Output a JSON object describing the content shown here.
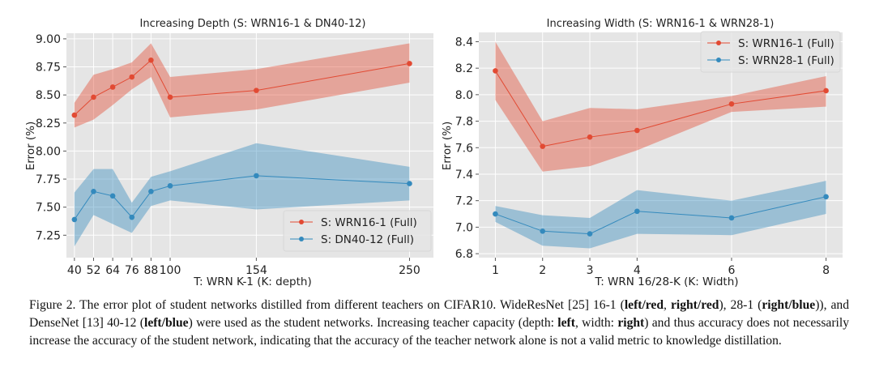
{
  "chart_data": [
    {
      "type": "line",
      "title": "Increasing Depth (S: WRN16-1 & DN40-12)",
      "xlabel": "T: WRN K-1 (K: depth)",
      "ylabel": "Error (%)",
      "x": [
        40,
        52,
        64,
        76,
        88,
        100,
        154,
        250
      ],
      "xticks": [
        "40",
        "52",
        "64",
        "76",
        "88",
        "100",
        "154",
        "250"
      ],
      "yticks": [
        "7.25",
        "7.50",
        "7.75",
        "8.00",
        "8.25",
        "8.50",
        "8.75",
        "9.00"
      ],
      "ytick_values": [
        7.25,
        7.5,
        7.75,
        8.0,
        8.25,
        8.5,
        8.75,
        9.0
      ],
      "xlim": [
        35,
        265
      ],
      "ylim": [
        7.05,
        9.05
      ],
      "grid": true,
      "legend_position": "lower-right",
      "series": [
        {
          "name": "S: WRN16-1 (Full)",
          "color": "#e24a33",
          "values": [
            8.32,
            8.48,
            8.57,
            8.66,
            8.81,
            8.48,
            8.54,
            8.78
          ],
          "upper": [
            8.43,
            8.68,
            8.73,
            8.79,
            8.96,
            8.66,
            8.73,
            8.96
          ],
          "lower": [
            8.21,
            8.28,
            8.41,
            8.55,
            8.66,
            8.3,
            8.37,
            8.61
          ]
        },
        {
          "name": "S: DN40-12 (Full)",
          "color": "#348abd",
          "values": [
            7.39,
            7.64,
            7.6,
            7.41,
            7.64,
            7.69,
            7.78,
            7.71
          ],
          "upper": [
            7.63,
            7.84,
            7.84,
            7.54,
            7.77,
            7.82,
            8.07,
            7.86
          ],
          "lower": [
            7.15,
            7.43,
            7.35,
            7.27,
            7.51,
            7.56,
            7.48,
            7.56
          ]
        }
      ]
    },
    {
      "type": "line",
      "title": "Increasing Width (S: WRN16-1 & WRN28-1)",
      "xlabel": "T: WRN 16/28-K (K: Width)",
      "ylabel": "Error (%)",
      "x": [
        1,
        2,
        3,
        4,
        6,
        8
      ],
      "xticks": [
        "1",
        "2",
        "3",
        "4",
        "6",
        "8"
      ],
      "yticks": [
        "6.8",
        "7.0",
        "7.2",
        "7.4",
        "7.6",
        "7.8",
        "8.0",
        "8.2",
        "8.4"
      ],
      "ytick_values": [
        6.8,
        7.0,
        7.2,
        7.4,
        7.6,
        7.8,
        8.0,
        8.2,
        8.4
      ],
      "xlim": [
        0.65,
        8.35
      ],
      "ylim": [
        6.77,
        8.47
      ],
      "grid": true,
      "legend_position": "top-right",
      "series": [
        {
          "name": "S: WRN16-1 (Full)",
          "color": "#e24a33",
          "values": [
            8.18,
            7.61,
            7.68,
            7.73,
            7.93,
            8.03
          ],
          "upper": [
            8.4,
            7.8,
            7.9,
            7.89,
            7.99,
            8.14
          ],
          "lower": [
            7.96,
            7.42,
            7.46,
            7.58,
            7.87,
            7.91
          ]
        },
        {
          "name": "S: WRN28-1 (Full)",
          "color": "#348abd",
          "values": [
            7.1,
            6.97,
            6.95,
            7.12,
            7.07,
            7.23
          ],
          "upper": [
            7.16,
            7.09,
            7.07,
            7.28,
            7.2,
            7.35
          ],
          "lower": [
            7.04,
            6.86,
            6.84,
            6.95,
            6.94,
            7.1
          ]
        }
      ]
    }
  ],
  "caption": {
    "segments": [
      {
        "text": "Figure 2. The error plot of student networks distilled from different teachers on CIFAR10.  WideResNet [25] 16-1 (",
        "bold": false
      },
      {
        "text": "left/red",
        "bold": true
      },
      {
        "text": ", ",
        "bold": false
      },
      {
        "text": "right/red",
        "bold": true
      },
      {
        "text": "), 28-1 (",
        "bold": false
      },
      {
        "text": "right/blue",
        "bold": true
      },
      {
        "text": ")), and DenseNet [13] 40-12 (",
        "bold": false
      },
      {
        "text": "left/blue",
        "bold": true
      },
      {
        "text": ") were used as the student networks. Increasing teacher capacity (depth: ",
        "bold": false
      },
      {
        "text": "left",
        "bold": true
      },
      {
        "text": ", width: ",
        "bold": false
      },
      {
        "text": "right",
        "bold": true
      },
      {
        "text": ") and thus accuracy does not necessarily increase the accuracy of the student network, indicating that the accuracy of the teacher network alone is not a valid metric to knowledge distillation.",
        "bold": false
      }
    ]
  }
}
